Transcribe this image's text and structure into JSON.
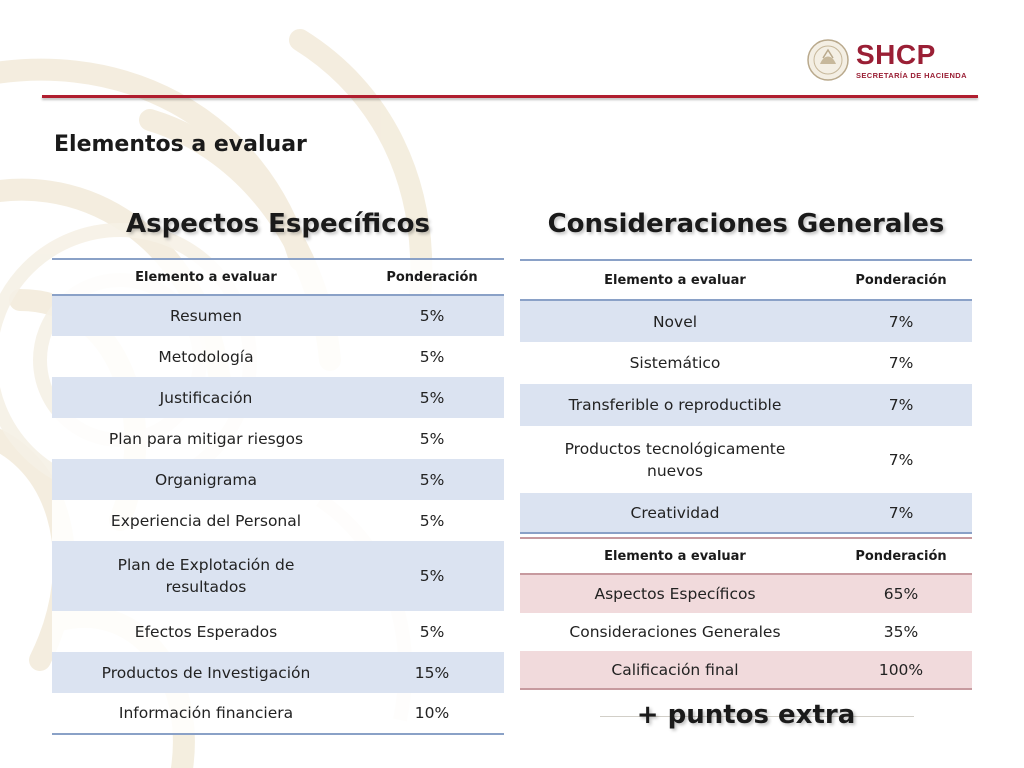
{
  "header": {
    "logo_text": "SHCP",
    "logo_subtitle": "SECRETARÍA DE HACIENDA",
    "page_heading": "Elementos a evaluar",
    "brand_color": "#9a1f35",
    "rule_color": "#b01e2f"
  },
  "aspectos": {
    "title": "Aspectos Específicos",
    "columns": [
      "Elemento a evaluar",
      "Ponderación"
    ],
    "rows": [
      {
        "element": "Resumen",
        "weight": "5%"
      },
      {
        "element": "Metodología",
        "weight": "5%"
      },
      {
        "element": "Justificación",
        "weight": "5%"
      },
      {
        "element": "Plan para mitigar riesgos",
        "weight": "5%"
      },
      {
        "element": "Organigrama",
        "weight": "5%"
      },
      {
        "element": "Experiencia del Personal",
        "weight": "5%"
      },
      {
        "element": "Plan de Explotación de resultados",
        "weight": "5%"
      },
      {
        "element": "Efectos Esperados",
        "weight": "5%"
      },
      {
        "element": "Productos de Investigación",
        "weight": "15%"
      },
      {
        "element": "Información financiera",
        "weight": "10%"
      }
    ]
  },
  "consideraciones": {
    "title": "Consideraciones Generales",
    "columns": [
      "Elemento a evaluar",
      "Ponderación"
    ],
    "rows": [
      {
        "element": "Novel",
        "weight": "7%"
      },
      {
        "element": "Sistemático",
        "weight": "7%"
      },
      {
        "element": "Transferible o reproductible",
        "weight": "7%"
      },
      {
        "element": "Productos tecnológicamente nuevos",
        "weight": "7%"
      },
      {
        "element": "Creatividad",
        "weight": "7%"
      }
    ]
  },
  "resumen": {
    "columns": [
      "Elemento a evaluar",
      "Ponderación"
    ],
    "rows": [
      {
        "element": "Aspectos Específicos",
        "weight": "65%"
      },
      {
        "element": "Consideraciones Generales",
        "weight": "35%"
      },
      {
        "element": "Calificación final",
        "weight": "100%"
      }
    ]
  },
  "footer": {
    "extra_points": "+ puntos extra"
  },
  "colors": {
    "blue_band": "#dbe3f1",
    "blue_rule": "#8aa1c7",
    "pink_band": "#f1dadc",
    "pink_rule": "#c79a9f"
  }
}
